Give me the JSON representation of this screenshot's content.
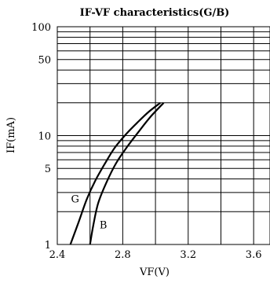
{
  "chart_data": {
    "type": "line",
    "title": "IF-VF characteristics(G/B)",
    "xlabel": "VF(V)",
    "ylabel": "IF(mA)",
    "xscale": "linear",
    "yscale": "log",
    "xlim": [
      2.4,
      3.7
    ],
    "ylim": [
      1,
      100
    ],
    "x_ticks": [
      2.4,
      2.8,
      3.2,
      3.6
    ],
    "x_tick_labels": [
      "2.4",
      "2.8",
      "3.2",
      "3.6"
    ],
    "y_ticks": [
      1,
      5,
      10,
      50,
      100
    ],
    "y_tick_labels": [
      "1",
      "5",
      "10",
      "50",
      "100"
    ],
    "grid": true,
    "series": [
      {
        "name": "G",
        "x": [
          2.48,
          2.53,
          2.58,
          2.63,
          2.69,
          2.75,
          2.82,
          2.89,
          2.96,
          3.03
        ],
        "y": [
          1.0,
          1.6,
          2.6,
          3.8,
          5.5,
          7.7,
          10.3,
          13.2,
          16.6,
          20.0
        ]
      },
      {
        "name": "B",
        "x": [
          2.6,
          2.62,
          2.65,
          2.7,
          2.76,
          2.83,
          2.9,
          2.97,
          3.05
        ],
        "y": [
          1.0,
          1.5,
          2.4,
          3.7,
          5.6,
          8.0,
          11.0,
          14.9,
          20.0
        ]
      }
    ],
    "curve_labels": [
      {
        "text": "G",
        "series": "G"
      },
      {
        "text": "B",
        "series": "B"
      }
    ]
  }
}
